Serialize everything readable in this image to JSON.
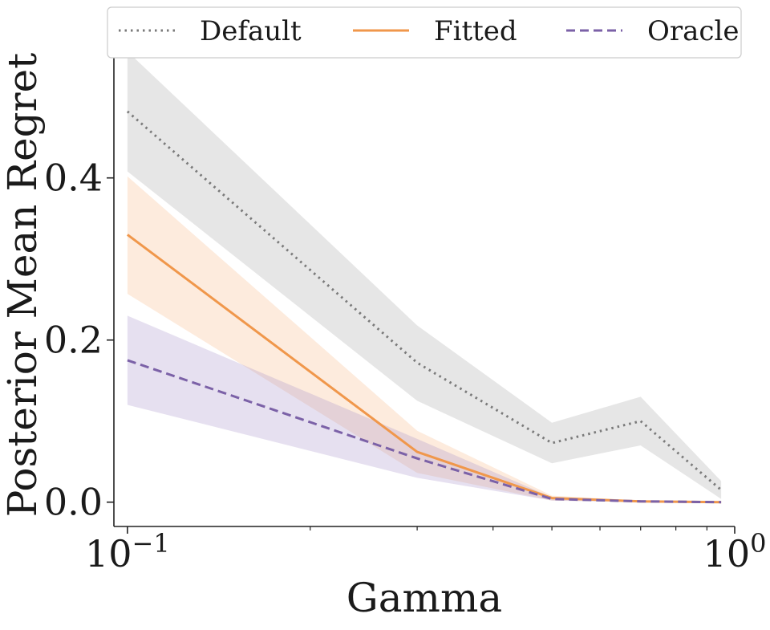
{
  "chart_data": {
    "type": "line",
    "xscale": "log",
    "xlabel": "Gamma",
    "ylabel": "Posterior Mean Regret",
    "xlim": [
      0.095,
      1.0
    ],
    "ylim": [
      -0.03,
      0.57
    ],
    "x": [
      0.1,
      0.3,
      0.5,
      0.7,
      0.95
    ],
    "xticks": [
      {
        "value": 0.1,
        "base": "10",
        "exp": "−1"
      },
      {
        "value": 1.0,
        "base": "10",
        "exp": "0"
      }
    ],
    "yticks": [
      {
        "value": 0.0,
        "label": "0.0"
      },
      {
        "value": 0.2,
        "label": "0.2"
      },
      {
        "value": 0.4,
        "label": "0.4"
      }
    ],
    "series": [
      {
        "name": "Default",
        "style": "dotted",
        "color": "#7a7a7a",
        "band_color": "#a6a6a6",
        "values": [
          0.482,
          0.172,
          0.073,
          0.1,
          0.015
        ],
        "lower": [
          0.408,
          0.125,
          0.048,
          0.07,
          0.004
        ],
        "upper": [
          0.556,
          0.218,
          0.098,
          0.13,
          0.026
        ]
      },
      {
        "name": "Fitted",
        "style": "solid",
        "color": "#f0974b",
        "band_color": "#f7b886",
        "values": [
          0.33,
          0.062,
          0.005,
          0.001,
          0.0
        ],
        "lower": [
          0.257,
          0.036,
          0.002,
          0.0,
          0.0
        ],
        "upper": [
          0.402,
          0.088,
          0.008,
          0.002,
          0.0005
        ]
      },
      {
        "name": "Oracle",
        "style": "dashed",
        "color": "#7b61a7",
        "band_color": "#a690c8",
        "values": [
          0.175,
          0.054,
          0.004,
          0.001,
          0.0
        ],
        "lower": [
          0.12,
          0.03,
          0.002,
          0.0,
          0.0
        ],
        "upper": [
          0.23,
          0.078,
          0.006,
          0.002,
          0.0005
        ]
      }
    ],
    "legend_position": "top"
  }
}
